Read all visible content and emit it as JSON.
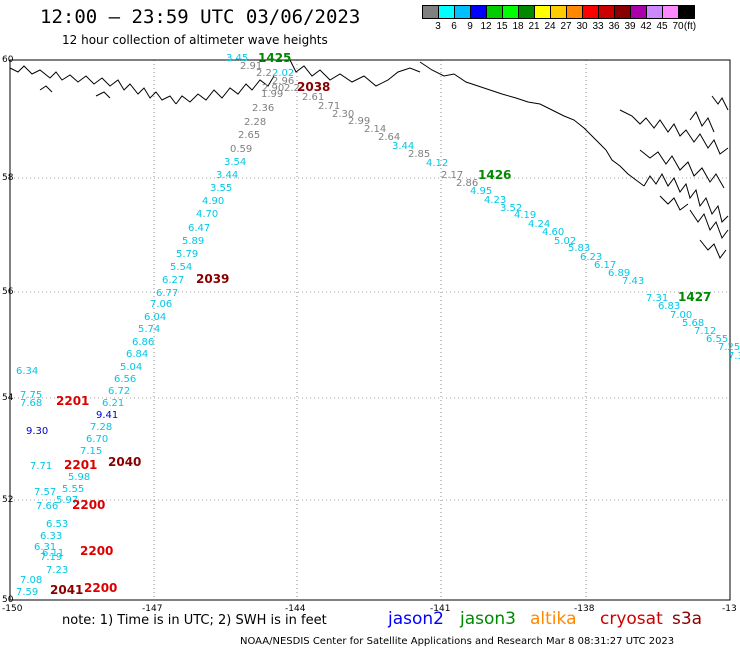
{
  "header": {
    "title": "12:00 – 23:59 UTC 03/06/2023",
    "subtitle": "12 hour collection of altimeter wave heights"
  },
  "colorbar": {
    "unit": "(ft)",
    "ticks": [
      "3",
      "6",
      "9",
      "12",
      "15",
      "18",
      "21",
      "24",
      "27",
      "30",
      "33",
      "36",
      "39",
      "42",
      "45",
      "70"
    ],
    "colors": [
      "#808080",
      "#00ffff",
      "#00bfff",
      "#0000ff",
      "#00cc00",
      "#00ff00",
      "#008800",
      "#ffff00",
      "#ffcc00",
      "#ff8800",
      "#ff0000",
      "#cc0000",
      "#880000",
      "#aa00aa",
      "#cc88ff",
      "#ff88ff",
      "#000000"
    ]
  },
  "map": {
    "lat_labels": [
      "60",
      "58",
      "56",
      "54",
      "52",
      "50"
    ],
    "lon_labels": [
      "-150",
      "-147",
      "-144",
      "-141",
      "-138",
      "-13"
    ]
  },
  "tracks": {
    "gray_track_a": [
      "2.91",
      "2.2",
      "1.99",
      "2.36",
      "2.28",
      "2.65",
      "0.59"
    ],
    "gray_track_b": [
      "2.61",
      "2.71",
      "2.30",
      "2.99",
      "2.14",
      "2.64",
      "2.85",
      "2.17",
      "2.86"
    ],
    "cyan_track_a": [
      "3.45",
      "3.54",
      "3.44",
      "3.55",
      "4.90",
      "4.70",
      "6.47",
      "5.89",
      "5.79",
      "5.54",
      "6.27",
      "6.77",
      "7.06",
      "6.04",
      "5.74",
      "6.86",
      "6.84",
      "5.04",
      "6.56",
      "6.72",
      "6.21",
      "7.28",
      "6.70",
      "7.15",
      "5.98",
      "5.55",
      "5.97",
      "6.53",
      "6.33",
      "6.31",
      "6.11",
      "7.19",
      "7.23",
      "7.08",
      "7.59",
      "6.34",
      "7.75",
      "7.68",
      "7.71",
      "7.57",
      "7.66"
    ],
    "cyan_track_b": [
      "3.44",
      "4.12",
      "4.95",
      "4.23",
      "3.52",
      "4.19",
      "4.24",
      "4.60",
      "5.02",
      "5.83",
      "6.23",
      "6.17",
      "6.89",
      "7.43",
      "7.31",
      "6.83",
      "7.00",
      "5.68",
      "7.12",
      "6.55",
      "7.25",
      "7.3"
    ],
    "blue_values": [
      "9.41",
      "9.30"
    ],
    "near_top_values": [
      "2.02",
      "2.96",
      "2.90",
      "2.2"
    ]
  },
  "times": {
    "green_top": "1425",
    "green_mid": "1426",
    "green_right": "1427",
    "darkred_top": "2038",
    "darkred_mid": "2039",
    "darkred_lower": "2040",
    "darkred_bottom": "2041",
    "red_a": "2201",
    "red_b": "2201",
    "red_c": "2200",
    "red_d": "2200",
    "red_e": "2200"
  },
  "footer": {
    "note": "note: 1) Time is in UTC; 2) SWH is in feet",
    "satellites": [
      {
        "name": "jason2",
        "color": "#0000ff"
      },
      {
        "name": "jason3",
        "color": "#008800"
      },
      {
        "name": "altika",
        "color": "#ff8800"
      },
      {
        "name": "cryosat",
        "color": "#cc0000"
      },
      {
        "name": "s3a",
        "color": "#880000"
      }
    ],
    "credit": "NOAA/NESDIS Center for Satellite Applications and Research   Mar  8 08:31:27 UTC 2023"
  }
}
